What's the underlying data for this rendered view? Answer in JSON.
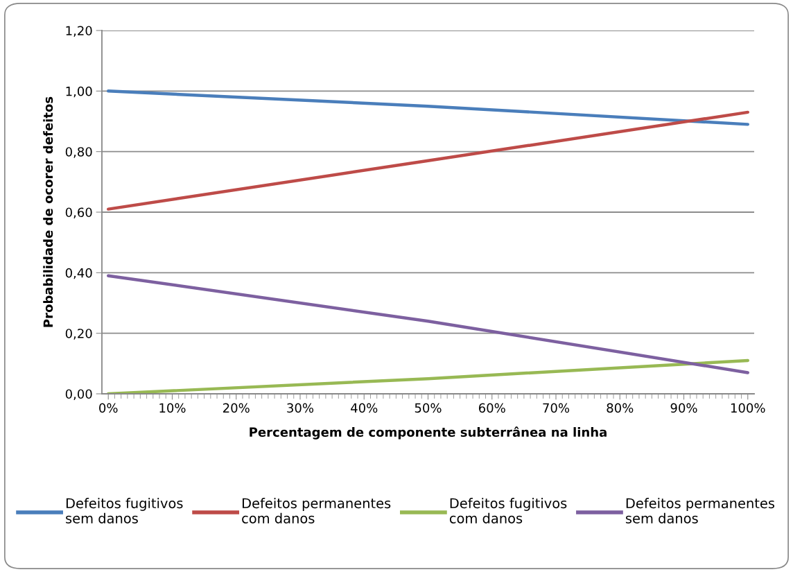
{
  "chart_data": {
    "type": "line",
    "xlabel": "Percentagem de componente subterrânea na linha",
    "ylabel": "Probabilidade de ocorer defeitos",
    "x": [
      0,
      50,
      100
    ],
    "series": [
      {
        "name": "Defeitos fugitivos\nsem danos",
        "color": "#4a7ebb",
        "values": [
          1.0,
          0.95,
          0.89
        ]
      },
      {
        "name": "Defeitos permanentes\ncom danos",
        "color": "#be4b48",
        "values": [
          0.61,
          0.77,
          0.93
        ]
      },
      {
        "name": "Defeitos fugitivos\ncom danos",
        "color": "#98b954",
        "values": [
          0.0,
          0.05,
          0.11
        ]
      },
      {
        "name": "Defeitos permanentes\nsem danos",
        "color": "#7d60a0",
        "values": [
          0.39,
          0.24,
          0.07
        ]
      }
    ],
    "xlim": [
      -1,
      101
    ],
    "xticks": [
      {
        "value": 0,
        "label": "0%"
      },
      {
        "value": 10,
        "label": "10%"
      },
      {
        "value": 20,
        "label": "20%"
      },
      {
        "value": 30,
        "label": "30%"
      },
      {
        "value": 40,
        "label": "40%"
      },
      {
        "value": 50,
        "label": "50%"
      },
      {
        "value": 60,
        "label": "60%"
      },
      {
        "value": 70,
        "label": "70%"
      },
      {
        "value": 80,
        "label": "80%"
      },
      {
        "value": 90,
        "label": "90%"
      },
      {
        "value": 100,
        "label": "100%"
      }
    ],
    "ylim": [
      0,
      1.2
    ],
    "yticks": [
      {
        "value": 0,
        "label": "0,00"
      },
      {
        "value": 0.2,
        "label": "0,20"
      },
      {
        "value": 0.4,
        "label": "0,40"
      },
      {
        "value": 0.6,
        "label": "0,60"
      },
      {
        "value": 0.8,
        "label": "0,80"
      },
      {
        "value": 1.0,
        "label": "1,00"
      },
      {
        "value": 1.2,
        "label": "1,20"
      }
    ],
    "grid": "y",
    "legend": "bottom",
    "marker": "none",
    "line_style": "solid"
  }
}
